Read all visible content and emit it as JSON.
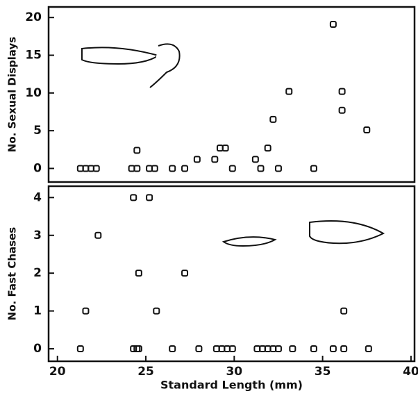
{
  "chart_data": [
    {
      "type": "scatter",
      "y_label": "No. Sexual Displays",
      "color": "#111111",
      "xlim": [
        19.5,
        40.2
      ],
      "ylim": [
        -1.8,
        21.4
      ],
      "yticks": [
        0,
        5,
        10,
        15,
        20
      ],
      "x": [
        21.3,
        21.6,
        21.9,
        22.2,
        24.2,
        24.5,
        24.5,
        25.2,
        25.5,
        26.5,
        27.2,
        27.9,
        28.9,
        29.2,
        29.5,
        29.9,
        31.2,
        31.5,
        31.9,
        32.2,
        32.5,
        33.1,
        34.5,
        35.6,
        36.1,
        36.1,
        37.5
      ],
      "values": [
        0,
        0,
        0,
        0,
        0,
        0,
        2.4,
        0,
        0,
        0,
        0,
        1.2,
        1.2,
        2.7,
        2.7,
        0,
        1.2,
        0,
        2.7,
        6.5,
        0,
        10.2,
        0,
        19.1,
        10.2,
        7.7,
        5.1
      ]
    },
    {
      "type": "scatter",
      "y_label": "No. Fast Chases",
      "x_label": "Standard Length (mm)",
      "color": "#111111",
      "xlim": [
        19.5,
        40.2
      ],
      "ylim": [
        -0.33,
        4.3
      ],
      "xticks": [
        20,
        25,
        30,
        35,
        40
      ],
      "yticks": [
        0,
        1,
        2,
        3,
        4
      ],
      "x": [
        21.3,
        21.6,
        22.3,
        24.3,
        24.3,
        24.5,
        24.6,
        24.6,
        25.2,
        25.6,
        26.5,
        27.2,
        28.0,
        29.0,
        29.3,
        29.6,
        29.9,
        31.3,
        31.6,
        31.9,
        32.2,
        32.5,
        33.3,
        34.5,
        35.6,
        36.2,
        36.2,
        37.6
      ],
      "values": [
        0,
        1,
        3,
        4,
        0,
        0,
        2,
        0,
        4,
        1,
        0,
        2,
        0,
        0,
        0,
        0,
        0,
        0,
        0,
        0,
        0,
        0,
        0,
        0,
        0,
        0,
        1,
        0
      ]
    }
  ]
}
